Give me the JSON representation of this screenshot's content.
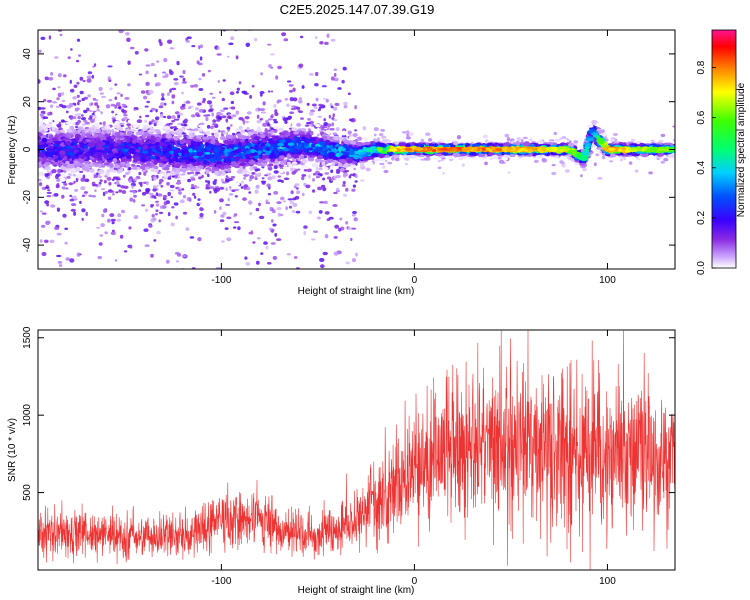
{
  "figure_title": "C2E5.2025.147.07.39.G19",
  "colors": {
    "snr_line": "#ee3333",
    "colormap": [
      "#ffffff",
      "#d9b8ff",
      "#8a2be2",
      "#4b00ff",
      "#0000ff",
      "#00bfff",
      "#00ff80",
      "#00ff00",
      "#ffff00",
      "#ff8000",
      "#ff0000",
      "#ff1493"
    ]
  },
  "chart_data": [
    {
      "type": "heatmap",
      "title": "",
      "xlabel": "Height of straight line (km)",
      "ylabel": "Frequency (Hz)",
      "xlim": [
        -195,
        135
      ],
      "ylim": [
        -50,
        50
      ],
      "x_ticks": [
        -100,
        0,
        100
      ],
      "x_tick_labels": [
        "-100",
        "0",
        "100"
      ],
      "y_ticks": [
        -40,
        -20,
        0,
        20,
        40
      ],
      "y_tick_labels": [
        "-40",
        "-20",
        "0",
        "20",
        "40"
      ],
      "grid": false,
      "colorbar": {
        "label": "Normalized spectral amplitude",
        "range": [
          0,
          0.95
        ],
        "ticks": [
          0,
          0.2,
          0.4,
          0.6,
          0.8
        ],
        "tick_labels": [
          "0.0",
          "0.2",
          "0.4",
          "0.6",
          "0.8"
        ]
      },
      "description_points": {
        "x": [
          -195,
          -150,
          -100,
          -60,
          -30,
          -20,
          -10,
          0,
          20,
          40,
          60,
          80,
          88,
          92,
          100,
          120,
          135
        ],
        "center_freq_hz": [
          0,
          0,
          -2,
          2,
          -2,
          0,
          0,
          0,
          0,
          0,
          0,
          0,
          -4,
          8,
          0,
          0,
          0
        ],
        "band_half_width_hz": [
          8,
          8,
          7,
          6,
          4,
          3,
          2,
          2,
          2,
          2,
          2,
          2,
          3,
          4,
          2,
          2,
          2
        ],
        "peak_amplitude": [
          0.25,
          0.25,
          0.35,
          0.35,
          0.45,
          0.6,
          0.8,
          0.85,
          0.85,
          0.85,
          0.8,
          0.75,
          0.5,
          0.3,
          0.85,
          0.7,
          0.6
        ]
      }
    },
    {
      "type": "line",
      "title": "",
      "xlabel": "Height of straight line (km)",
      "ylabel": "SNR (10 * v/v)",
      "xlim": [
        -195,
        135
      ],
      "ylim": [
        0,
        1550
      ],
      "x_ticks": [
        -100,
        0,
        100
      ],
      "x_tick_labels": [
        "-100",
        "0",
        "100"
      ],
      "y_ticks": [
        500,
        1000,
        1500
      ],
      "y_tick_labels": [
        "500",
        "1000",
        "1500"
      ],
      "grid": false,
      "series": [
        {
          "x": [
            -195,
            -180,
            -160,
            -140,
            -120,
            -110,
            -100,
            -90,
            -80,
            -70,
            -60,
            -50,
            -40,
            -30,
            -20,
            -10,
            0,
            10,
            20,
            30,
            40,
            50,
            60,
            70,
            80,
            88,
            92,
            95,
            98,
            105,
            115,
            125,
            135
          ],
          "values": [
            230,
            240,
            230,
            220,
            230,
            260,
            330,
            300,
            340,
            260,
            250,
            220,
            250,
            320,
            420,
            560,
            660,
            720,
            760,
            800,
            830,
            840,
            820,
            800,
            790,
            760,
            720,
            750,
            720,
            740,
            750,
            720,
            740
          ]
        }
      ]
    }
  ]
}
